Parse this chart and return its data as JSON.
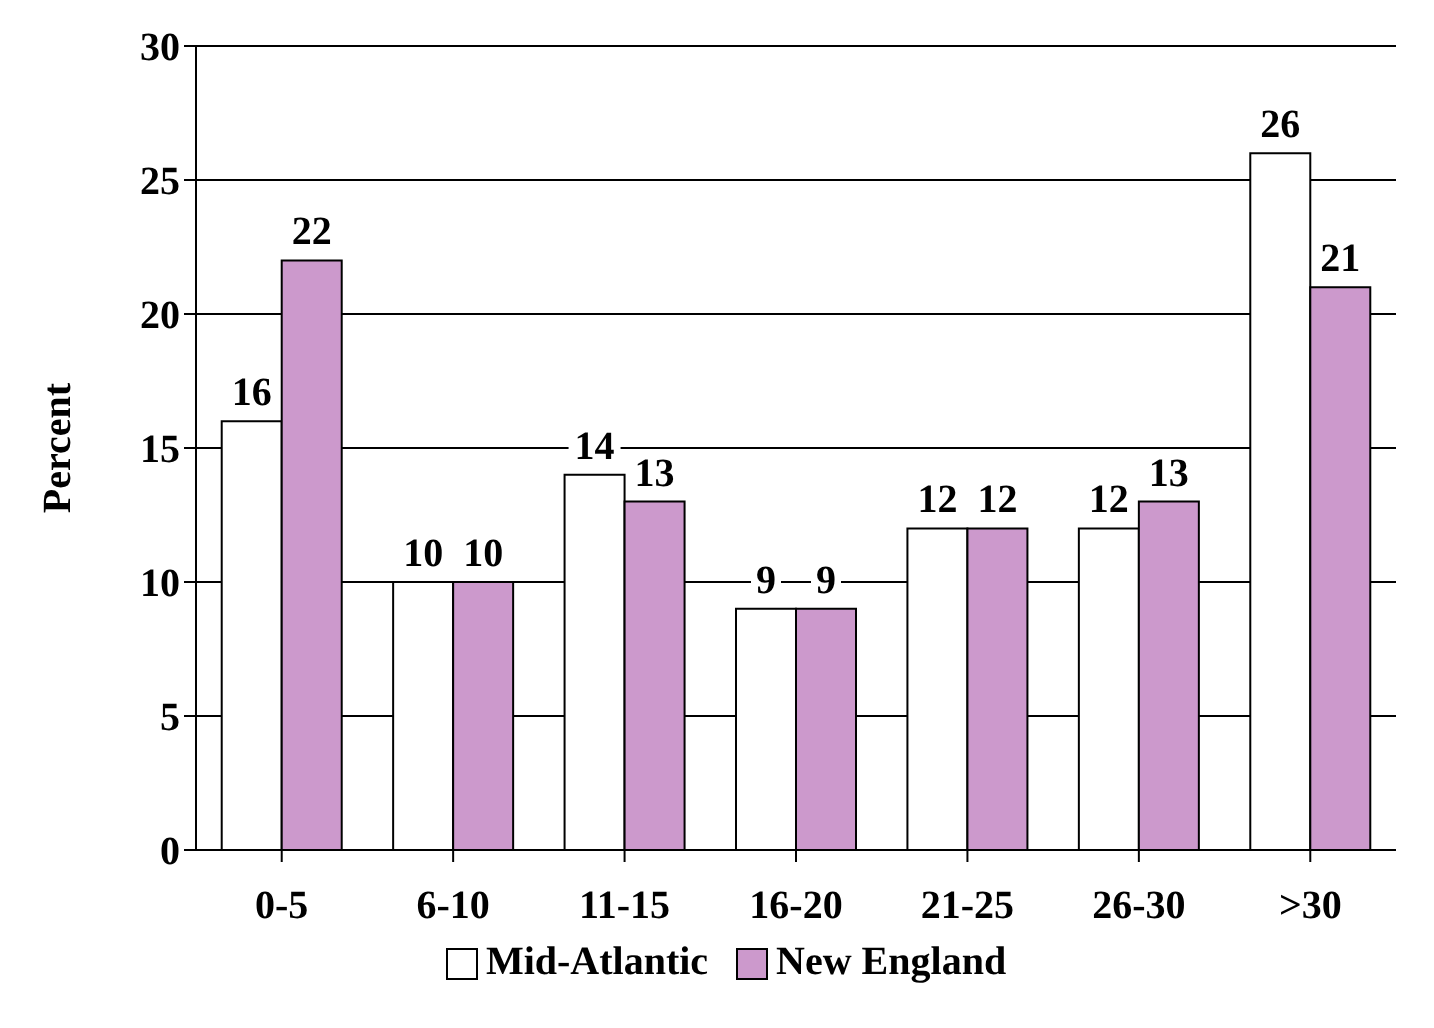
{
  "chart_data": {
    "type": "bar",
    "ylabel": "Percent",
    "categories": [
      "0-5",
      "6-10",
      "11-15",
      "16-20",
      "21-25",
      "26-30",
      ">30"
    ],
    "series": [
      {
        "name": "Mid-Atlantic",
        "color": "#ffffff",
        "values": [
          16,
          10,
          14,
          9,
          12,
          12,
          26
        ]
      },
      {
        "name": "New England",
        "color": "#cc99cc",
        "values": [
          22,
          10,
          13,
          9,
          12,
          13,
          21
        ]
      }
    ],
    "ylim": [
      0,
      30
    ],
    "yticks": [
      0,
      5,
      10,
      15,
      20,
      25,
      30
    ],
    "grid": "y",
    "legend": "bottom",
    "data_labels": true
  }
}
